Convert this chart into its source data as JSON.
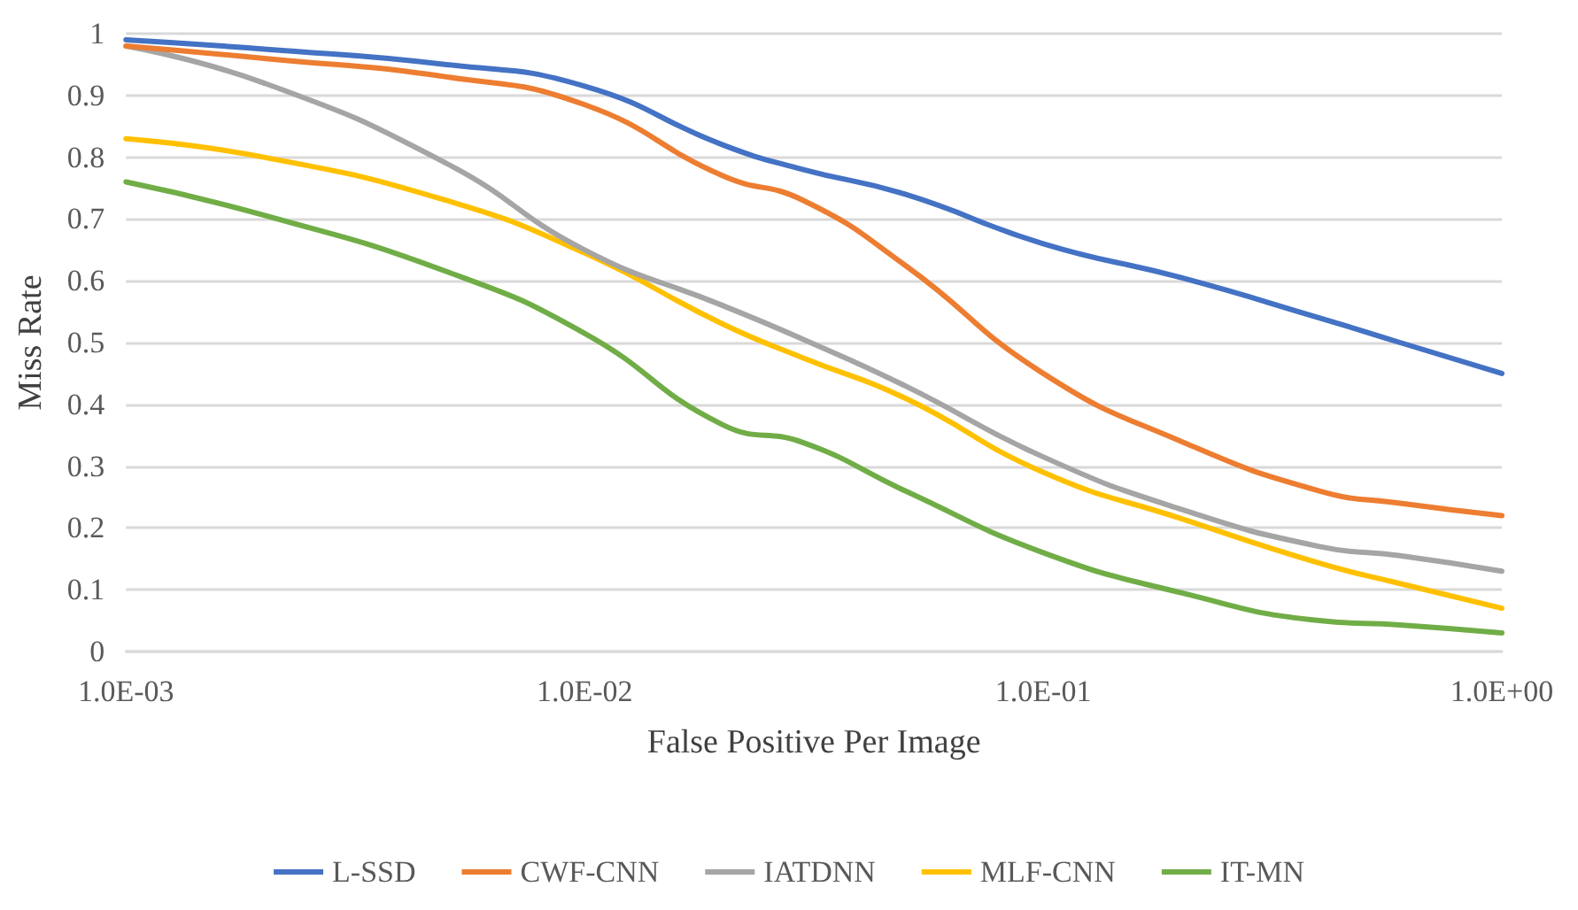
{
  "chart_data": {
    "type": "line",
    "xlabel": "False Positive Per Image",
    "ylabel": "Miss Rate",
    "log": "x",
    "grid": "y",
    "legend": "bottom",
    "marker": "none",
    "line_style": "solid",
    "x": [
      0.001,
      0.002,
      0.005,
      0.01,
      0.02,
      0.03,
      0.05,
      0.1,
      0.2,
      0.4,
      0.6,
      1
    ],
    "xlim": [
      0.001,
      1
    ],
    "xticks": [
      {
        "value": 0.001,
        "label": "1.0E-03"
      },
      {
        "value": 0.01,
        "label": "1.0E-02"
      },
      {
        "value": 0.1,
        "label": "1.0E-01"
      },
      {
        "value": 1,
        "label": "1.0E+00"
      }
    ],
    "ylim": [
      0,
      1
    ],
    "yticks": [
      0,
      0.1,
      0.2,
      0.3,
      0.4,
      0.5,
      0.6,
      0.7,
      0.8,
      0.9,
      1
    ],
    "series": [
      {
        "name": "L-SSD",
        "color": "#4472c4",
        "values": [
          0.99,
          0.975,
          0.95,
          0.915,
          0.82,
          0.78,
          0.74,
          0.66,
          0.605,
          0.54,
          0.5,
          0.45
        ]
      },
      {
        "name": "CWF-CNN",
        "color": "#ed7d31",
        "values": [
          0.98,
          0.96,
          0.93,
          0.885,
          0.77,
          0.73,
          0.625,
          0.45,
          0.34,
          0.26,
          0.24,
          0.22
        ]
      },
      {
        "name": "IATDNN",
        "color": "#a5a5a5",
        "values": [
          0.98,
          0.92,
          0.79,
          0.65,
          0.56,
          0.505,
          0.43,
          0.315,
          0.23,
          0.17,
          0.155,
          0.13
        ]
      },
      {
        "name": "MLF-CNN",
        "color": "#ffc000",
        "values": [
          0.83,
          0.8,
          0.73,
          0.645,
          0.53,
          0.475,
          0.41,
          0.29,
          0.215,
          0.143,
          0.11,
          0.07
        ]
      },
      {
        "name": "IT-MN",
        "color": "#70ad47",
        "values": [
          0.76,
          0.706,
          0.615,
          0.515,
          0.367,
          0.338,
          0.26,
          0.16,
          0.095,
          0.05,
          0.043,
          0.03
        ]
      }
    ]
  }
}
